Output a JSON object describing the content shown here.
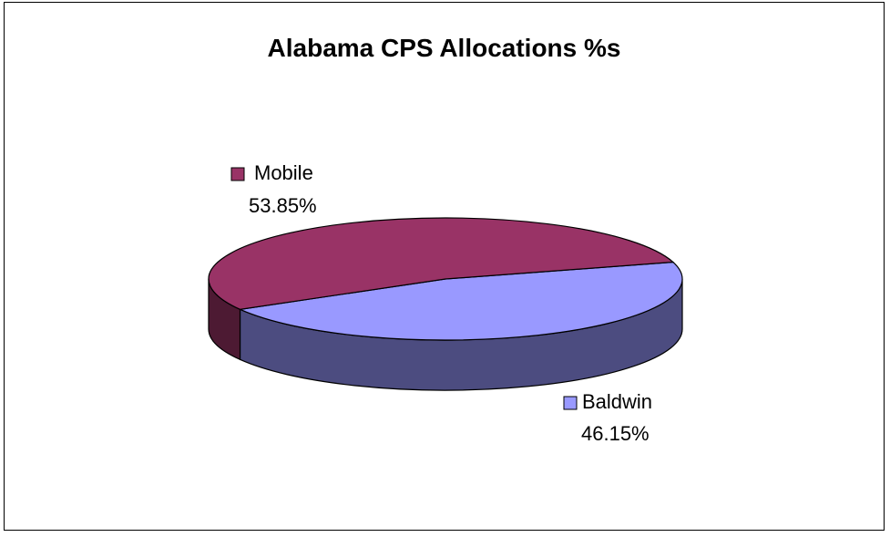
{
  "chart_data": {
    "type": "pie",
    "title": "Alabama CPS Allocations %s",
    "three_d": true,
    "slices": [
      {
        "label": "Mobile",
        "value": 53.85,
        "percent_text": "53.85%",
        "color": "#993366",
        "side_color": "#4D1A33"
      },
      {
        "label": "Baldwin",
        "value": 46.15,
        "percent_text": "46.15%",
        "color": "#9999FF",
        "side_color": "#4C4C80"
      }
    ]
  }
}
